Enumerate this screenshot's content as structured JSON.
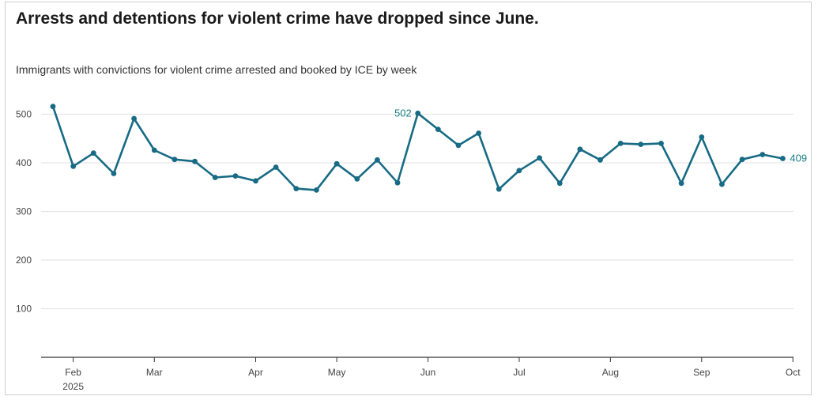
{
  "title": "Arrests and detentions for violent crime have dropped since June.",
  "subtitle": "Immigrants with convictions for violent crime arrested and booked by ICE by week",
  "colors": {
    "line": "#176b84",
    "label": "#1a7f86",
    "grid": "#e6e6e6",
    "axis": "#333333"
  },
  "chart_data": {
    "type": "line",
    "title": "Arrests and detentions for violent crime have dropped since June.",
    "subtitle": "Immigrants with convictions for violent crime arrested and booked by ICE by week",
    "xlabel": "",
    "ylabel": "",
    "ylim": [
      0,
      550
    ],
    "yticks": [
      100,
      200,
      300,
      400,
      500
    ],
    "grid": true,
    "x_ticks": [
      {
        "label": "Feb",
        "sublabel": "2025",
        "week": 1
      },
      {
        "label": "Mar",
        "week": 5
      },
      {
        "label": "Apr",
        "week": 10
      },
      {
        "label": "May",
        "week": 14
      },
      {
        "label": "Jun",
        "week": 18.5
      },
      {
        "label": "Jul",
        "week": 23
      },
      {
        "label": "Aug",
        "week": 27.5
      },
      {
        "label": "Sep",
        "week": 32
      },
      {
        "label": "Oct",
        "week": 36.5
      }
    ],
    "series": [
      {
        "values": [
          516,
          393,
          420,
          378,
          491,
          426,
          407,
          403,
          370,
          373,
          363,
          391,
          347,
          344,
          398,
          367,
          406,
          359,
          502,
          469,
          436,
          461,
          346,
          384,
          410,
          358,
          428,
          406,
          440,
          438,
          440,
          358,
          453,
          356,
          407,
          417,
          409
        ]
      }
    ],
    "annotations": [
      {
        "index": 18,
        "text": "502",
        "side": "left"
      },
      {
        "index": 36,
        "text": "409",
        "side": "right"
      }
    ]
  }
}
